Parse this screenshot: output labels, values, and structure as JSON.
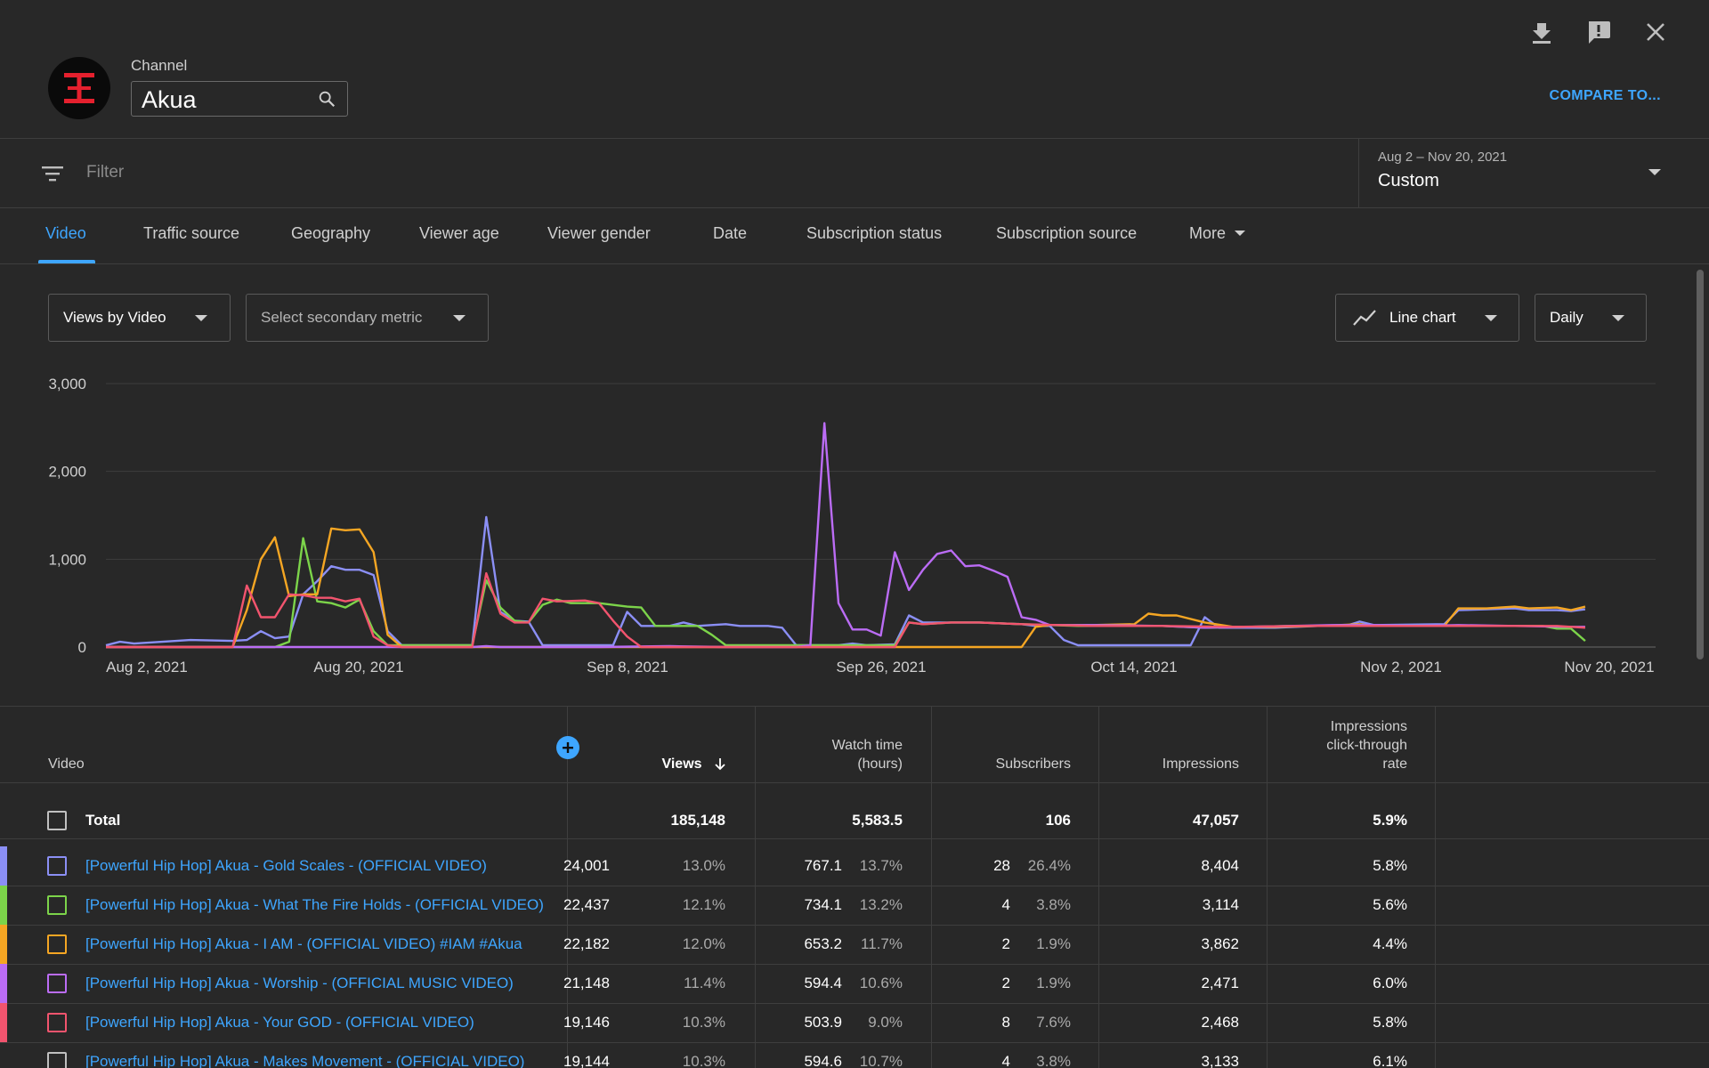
{
  "header": {
    "channel_label": "Channel",
    "channel_name": "Akua",
    "compare_label": "COMPARE TO...",
    "icons": [
      "download-icon",
      "feedback-icon",
      "close-icon"
    ]
  },
  "filter": {
    "placeholder": "Filter",
    "date_range": "Aug 2 – Nov 20, 2021",
    "date_preset": "Custom"
  },
  "tabs": [
    {
      "label": "Video",
      "active": true
    },
    {
      "label": "Traffic source"
    },
    {
      "label": "Geography"
    },
    {
      "label": "Viewer age"
    },
    {
      "label": "Viewer gender"
    },
    {
      "label": "Date"
    },
    {
      "label": "Subscription status"
    },
    {
      "label": "Subscription source"
    },
    {
      "label": "More"
    }
  ],
  "controls": {
    "primary_metric": "Views by Video",
    "secondary_metric": "Select secondary metric",
    "chart_type": "Line chart",
    "granularity": "Daily"
  },
  "chart_data": {
    "type": "line",
    "y_ticks": [
      "3,000",
      "2,000",
      "1,000",
      "0"
    ],
    "ylim": [
      0,
      3000
    ],
    "x_ticks": [
      "Aug 2, 2021",
      "Aug 20, 2021",
      "Sep 8, 2021",
      "Sep 26, 2021",
      "Oct 14, 2021",
      "Nov 2, 2021",
      "Nov 20, 2021"
    ],
    "x_start": "2021-08-02",
    "x_end": "2021-11-20",
    "grid": true,
    "series": [
      {
        "color": "#8b8ff5",
        "points": [
          [
            0,
            20
          ],
          [
            1,
            60
          ],
          [
            2,
            40
          ],
          [
            4,
            60
          ],
          [
            6,
            80
          ],
          [
            9,
            70
          ],
          [
            10,
            80
          ],
          [
            11,
            180
          ],
          [
            12,
            100
          ],
          [
            13,
            120
          ],
          [
            14,
            600
          ],
          [
            15,
            750
          ],
          [
            16,
            920
          ],
          [
            17,
            880
          ],
          [
            18,
            880
          ],
          [
            19,
            820
          ],
          [
            20,
            180
          ],
          [
            21,
            20
          ],
          [
            25,
            20
          ],
          [
            26,
            20
          ],
          [
            27,
            1480
          ],
          [
            28,
            400
          ],
          [
            29,
            300
          ],
          [
            30,
            290
          ],
          [
            31,
            20
          ],
          [
            36,
            20
          ],
          [
            37,
            400
          ],
          [
            38,
            240
          ],
          [
            40,
            240
          ],
          [
            41,
            280
          ],
          [
            42,
            240
          ],
          [
            44,
            260
          ],
          [
            45,
            240
          ],
          [
            47,
            240
          ],
          [
            48,
            220
          ],
          [
            49,
            20
          ],
          [
            52,
            20
          ],
          [
            53,
            40
          ],
          [
            54,
            20
          ],
          [
            56,
            30
          ],
          [
            57,
            360
          ],
          [
            58,
            280
          ],
          [
            60,
            280
          ],
          [
            62,
            280
          ],
          [
            65,
            260
          ],
          [
            66,
            240
          ],
          [
            67,
            240
          ],
          [
            68,
            80
          ],
          [
            69,
            20
          ],
          [
            75,
            20
          ],
          [
            77,
            20
          ],
          [
            78,
            340
          ],
          [
            79,
            220
          ],
          [
            83,
            220
          ],
          [
            86,
            240
          ],
          [
            88,
            240
          ],
          [
            89,
            290
          ],
          [
            90,
            250
          ],
          [
            95,
            260
          ],
          [
            96,
            420
          ],
          [
            98,
            430
          ],
          [
            100,
            440
          ],
          [
            101,
            420
          ],
          [
            103,
            420
          ],
          [
            104,
            410
          ],
          [
            105,
            430
          ]
        ]
      },
      {
        "color": "#7cd44a",
        "points": [
          [
            0,
            0
          ],
          [
            12,
            0
          ],
          [
            13,
            60
          ],
          [
            14,
            1240
          ],
          [
            15,
            520
          ],
          [
            16,
            500
          ],
          [
            17,
            450
          ],
          [
            18,
            540
          ],
          [
            19,
            180
          ],
          [
            20,
            20
          ],
          [
            25,
            20
          ],
          [
            26,
            20
          ],
          [
            27,
            760
          ],
          [
            28,
            450
          ],
          [
            29,
            300
          ],
          [
            30,
            280
          ],
          [
            31,
            480
          ],
          [
            32,
            540
          ],
          [
            33,
            500
          ],
          [
            35,
            500
          ],
          [
            37,
            460
          ],
          [
            38,
            450
          ],
          [
            39,
            240
          ],
          [
            40,
            240
          ],
          [
            42,
            240
          ],
          [
            43,
            140
          ],
          [
            44,
            20
          ],
          [
            53,
            20
          ],
          [
            54,
            20
          ],
          [
            56,
            20
          ],
          [
            57,
            280
          ],
          [
            58,
            260
          ],
          [
            60,
            280
          ],
          [
            62,
            280
          ],
          [
            65,
            260
          ],
          [
            69,
            240
          ],
          [
            72,
            240
          ],
          [
            75,
            240
          ],
          [
            78,
            220
          ],
          [
            81,
            230
          ],
          [
            84,
            240
          ],
          [
            87,
            240
          ],
          [
            90,
            240
          ],
          [
            93,
            240
          ],
          [
            96,
            240
          ],
          [
            98,
            240
          ],
          [
            100,
            240
          ],
          [
            102,
            240
          ],
          [
            103,
            210
          ],
          [
            104,
            210
          ],
          [
            105,
            70
          ]
        ]
      },
      {
        "color": "#f5a623",
        "points": [
          [
            0,
            0
          ],
          [
            9,
            0
          ],
          [
            10,
            420
          ],
          [
            11,
            1000
          ],
          [
            12,
            1250
          ],
          [
            13,
            580
          ],
          [
            14,
            600
          ],
          [
            15,
            600
          ],
          [
            16,
            1350
          ],
          [
            17,
            1330
          ],
          [
            18,
            1340
          ],
          [
            19,
            1080
          ],
          [
            20,
            140
          ],
          [
            21,
            0
          ],
          [
            42,
            0
          ],
          [
            46,
            0
          ],
          [
            49,
            0
          ],
          [
            60,
            0
          ],
          [
            65,
            0
          ],
          [
            66,
            230
          ],
          [
            67,
            250
          ],
          [
            70,
            250
          ],
          [
            73,
            260
          ],
          [
            74,
            380
          ],
          [
            75,
            360
          ],
          [
            76,
            360
          ],
          [
            78,
            280
          ],
          [
            80,
            230
          ],
          [
            83,
            230
          ],
          [
            86,
            240
          ],
          [
            89,
            260
          ],
          [
            90,
            240
          ],
          [
            93,
            240
          ],
          [
            95,
            240
          ],
          [
            96,
            440
          ],
          [
            98,
            440
          ],
          [
            100,
            460
          ],
          [
            101,
            440
          ],
          [
            103,
            450
          ],
          [
            104,
            420
          ],
          [
            105,
            460
          ]
        ]
      },
      {
        "color": "#bb6cf5",
        "points": [
          [
            0,
            0
          ],
          [
            26,
            0
          ],
          [
            27,
            10
          ],
          [
            28,
            0
          ],
          [
            35,
            0
          ],
          [
            40,
            10
          ],
          [
            44,
            0
          ],
          [
            49,
            0
          ],
          [
            50,
            20
          ],
          [
            51,
            2550
          ],
          [
            52,
            500
          ],
          [
            53,
            200
          ],
          [
            54,
            200
          ],
          [
            55,
            130
          ],
          [
            56,
            1080
          ],
          [
            57,
            650
          ],
          [
            58,
            880
          ],
          [
            59,
            1060
          ],
          [
            60,
            1100
          ],
          [
            61,
            920
          ],
          [
            62,
            930
          ],
          [
            63,
            870
          ],
          [
            64,
            800
          ],
          [
            65,
            340
          ],
          [
            66,
            310
          ],
          [
            67,
            250
          ],
          [
            70,
            250
          ],
          [
            75,
            240
          ],
          [
            78,
            220
          ],
          [
            81,
            230
          ],
          [
            84,
            240
          ],
          [
            87,
            250
          ],
          [
            90,
            250
          ],
          [
            93,
            240
          ],
          [
            96,
            250
          ],
          [
            100,
            240
          ],
          [
            104,
            230
          ],
          [
            105,
            230
          ]
        ]
      },
      {
        "color": "#f2546e",
        "points": [
          [
            0,
            0
          ],
          [
            9,
            0
          ],
          [
            10,
            700
          ],
          [
            11,
            340
          ],
          [
            12,
            340
          ],
          [
            13,
            600
          ],
          [
            14,
            590
          ],
          [
            15,
            560
          ],
          [
            16,
            560
          ],
          [
            17,
            520
          ],
          [
            18,
            550
          ],
          [
            19,
            120
          ],
          [
            20,
            20
          ],
          [
            21,
            0
          ],
          [
            26,
            0
          ],
          [
            27,
            840
          ],
          [
            28,
            380
          ],
          [
            29,
            280
          ],
          [
            30,
            280
          ],
          [
            31,
            550
          ],
          [
            32,
            520
          ],
          [
            34,
            530
          ],
          [
            35,
            500
          ],
          [
            36,
            300
          ],
          [
            37,
            120
          ],
          [
            38,
            0
          ],
          [
            52,
            0
          ],
          [
            56,
            0
          ],
          [
            57,
            280
          ],
          [
            58,
            260
          ],
          [
            60,
            280
          ],
          [
            62,
            280
          ],
          [
            65,
            260
          ],
          [
            70,
            240
          ],
          [
            75,
            240
          ],
          [
            80,
            230
          ],
          [
            85,
            240
          ],
          [
            90,
            240
          ],
          [
            95,
            240
          ],
          [
            100,
            240
          ],
          [
            103,
            240
          ],
          [
            104,
            230
          ],
          [
            105,
            220
          ]
        ]
      }
    ]
  },
  "table": {
    "columns": {
      "video": "Video",
      "views": "Views",
      "watch_time": [
        "Watch time",
        "(hours)"
      ],
      "subscribers": "Subscribers",
      "impressions": "Impressions",
      "ctr": [
        "Impressions",
        "click-through",
        "rate"
      ]
    },
    "total": {
      "label": "Total",
      "views": "185,148",
      "watch_time": "5,583.5",
      "subscribers": "106",
      "impressions": "47,057",
      "ctr": "5.9%"
    },
    "rows": [
      {
        "color": "#8b8ff5",
        "title": "[Powerful Hip Hop] Akua - Gold Scales - (OFFICIAL VIDEO)",
        "views": "24,001",
        "views_pct": "13.0%",
        "watch": "767.1",
        "watch_pct": "13.7%",
        "subs": "28",
        "subs_pct": "26.4%",
        "impr": "8,404",
        "ctr": "5.8%"
      },
      {
        "color": "#7cd44a",
        "title": "[Powerful Hip Hop] Akua - What The Fire Holds - (OFFICIAL VIDEO)",
        "views": "22,437",
        "views_pct": "12.1%",
        "watch": "734.1",
        "watch_pct": "13.2%",
        "subs": "4",
        "subs_pct": "3.8%",
        "impr": "3,114",
        "ctr": "5.6%"
      },
      {
        "color": "#f5a623",
        "title": "[Powerful Hip Hop] Akua - I AM - (OFFICIAL VIDEO) #IAM #Akua",
        "views": "22,182",
        "views_pct": "12.0%",
        "watch": "653.2",
        "watch_pct": "11.7%",
        "subs": "2",
        "subs_pct": "1.9%",
        "impr": "3,862",
        "ctr": "4.4%"
      },
      {
        "color": "#bb6cf5",
        "title": "[Powerful Hip Hop] Akua - Worship - (OFFICIAL MUSIC VIDEO)",
        "views": "21,148",
        "views_pct": "11.4%",
        "watch": "594.4",
        "watch_pct": "10.6%",
        "subs": "2",
        "subs_pct": "1.9%",
        "impr": "2,471",
        "ctr": "6.0%"
      },
      {
        "color": "#f2546e",
        "title": "[Powerful Hip Hop] Akua - Your GOD - (OFFICIAL VIDEO)",
        "views": "19,146",
        "views_pct": "10.3%",
        "watch": "503.9",
        "watch_pct": "9.0%",
        "subs": "8",
        "subs_pct": "7.6%",
        "impr": "2,468",
        "ctr": "5.8%"
      },
      {
        "color": "",
        "title": "[Powerful Hip Hop] Akua - Makes Movement - (OFFICIAL VIDEO)",
        "views": "19,144",
        "views_pct": "10.3%",
        "watch": "594.6",
        "watch_pct": "10.7%",
        "subs": "4",
        "subs_pct": "3.8%",
        "impr": "3,133",
        "ctr": "6.1%"
      }
    ]
  }
}
